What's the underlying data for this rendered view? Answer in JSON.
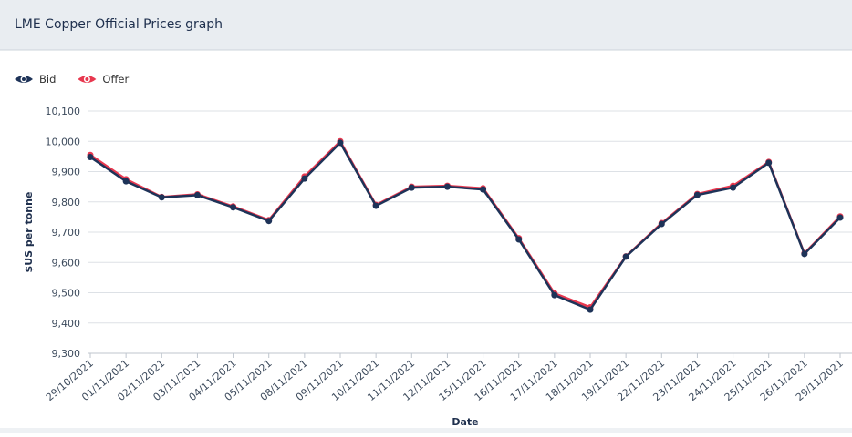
{
  "chart_data": {
    "type": "line",
    "title": "LME Copper Official Prices graph",
    "x_label": "Date",
    "y_label": "$US per tonne",
    "categories": [
      "29/10/2021",
      "01/11/2021",
      "02/11/2021",
      "03/11/2021",
      "04/11/2021",
      "05/11/2021",
      "08/11/2021",
      "09/11/2021",
      "10/11/2021",
      "11/11/2021",
      "12/11/2021",
      "15/11/2021",
      "16/11/2021",
      "17/11/2021",
      "18/11/2021",
      "19/11/2021",
      "22/11/2021",
      "23/11/2021",
      "24/11/2021",
      "25/11/2021",
      "26/11/2021",
      "29/11/2021"
    ],
    "series": [
      {
        "name": "Offer",
        "color": "#e8384f",
        "values": [
          9955,
          9875,
          9816,
          9825,
          9785,
          9740,
          9884,
          10000,
          9790,
          9850,
          9853,
          9845,
          9680,
          9498,
          9452,
          9620,
          9730,
          9826,
          9853,
          9932,
          9630,
          9752
        ]
      },
      {
        "name": "Bid",
        "color": "#1e3358",
        "values": [
          9948,
          9868,
          9815,
          9822,
          9782,
          9737,
          9877,
          9995,
          9787,
          9847,
          9850,
          9841,
          9676,
          9492,
          9444,
          9619,
          9727,
          9823,
          9847,
          9929,
          9628,
          9748
        ]
      }
    ],
    "legend_order": [
      1,
      0
    ],
    "ylim": [
      9300,
      10100
    ],
    "yticks": [
      {
        "value": 9300,
        "label": "9,300"
      },
      {
        "value": 9400,
        "label": "9,400"
      },
      {
        "value": 9500,
        "label": "9,500"
      },
      {
        "value": 9600,
        "label": "9,600"
      },
      {
        "value": 9700,
        "label": "9,700"
      },
      {
        "value": 9800,
        "label": "9,800"
      },
      {
        "value": 9900,
        "label": "9,900"
      },
      {
        "value": 10000,
        "label": "10,000"
      },
      {
        "value": 10100,
        "label": "10,100"
      }
    ],
    "grid": true
  }
}
